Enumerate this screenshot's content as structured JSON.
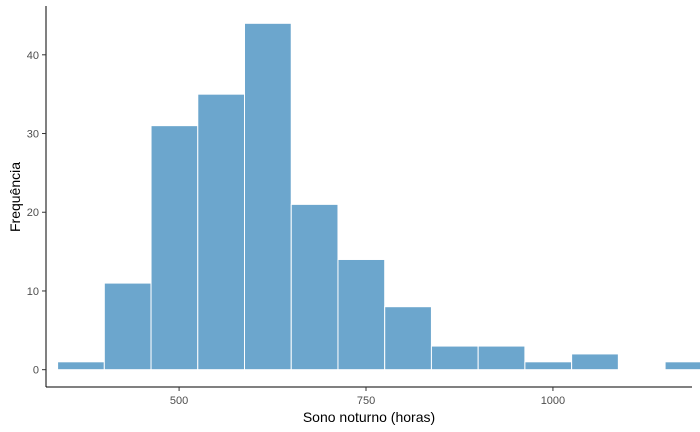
{
  "chart_data": {
    "type": "bar",
    "title": "",
    "xlabel": "Sono noturno (horas)",
    "ylabel": "Frequência",
    "xlim": [
      322,
      1186
    ],
    "ylim": [
      -2.2,
      46.2
    ],
    "bin_width": 62.5,
    "bins": [
      {
        "start": 337.5,
        "end": 400,
        "count": 1
      },
      {
        "start": 400,
        "end": 462.5,
        "count": 11
      },
      {
        "start": 462.5,
        "end": 525,
        "count": 31
      },
      {
        "start": 525,
        "end": 587.5,
        "count": 35
      },
      {
        "start": 587.5,
        "end": 650,
        "count": 44
      },
      {
        "start": 650,
        "end": 712.5,
        "count": 21
      },
      {
        "start": 712.5,
        "end": 775,
        "count": 14
      },
      {
        "start": 775,
        "end": 837.5,
        "count": 8
      },
      {
        "start": 837.5,
        "end": 900,
        "count": 3
      },
      {
        "start": 900,
        "end": 962.5,
        "count": 3
      },
      {
        "start": 962.5,
        "end": 1025,
        "count": 1
      },
      {
        "start": 1025,
        "end": 1087.5,
        "count": 2
      },
      {
        "start": 1087.5,
        "end": 1150,
        "count": 0
      },
      {
        "start": 1150,
        "end": 1212.5,
        "count": 1
      }
    ],
    "x_ticks": [
      500,
      750,
      1000
    ],
    "x_tick_labels": [
      "500",
      "750",
      "1000"
    ],
    "y_ticks": [
      0,
      10,
      20,
      30,
      40
    ],
    "y_tick_labels": [
      "0",
      "10",
      "20",
      "30",
      "40"
    ],
    "grid": false,
    "bar_color": "#6ca6cd",
    "bar_edge_color": "#ffffff"
  }
}
